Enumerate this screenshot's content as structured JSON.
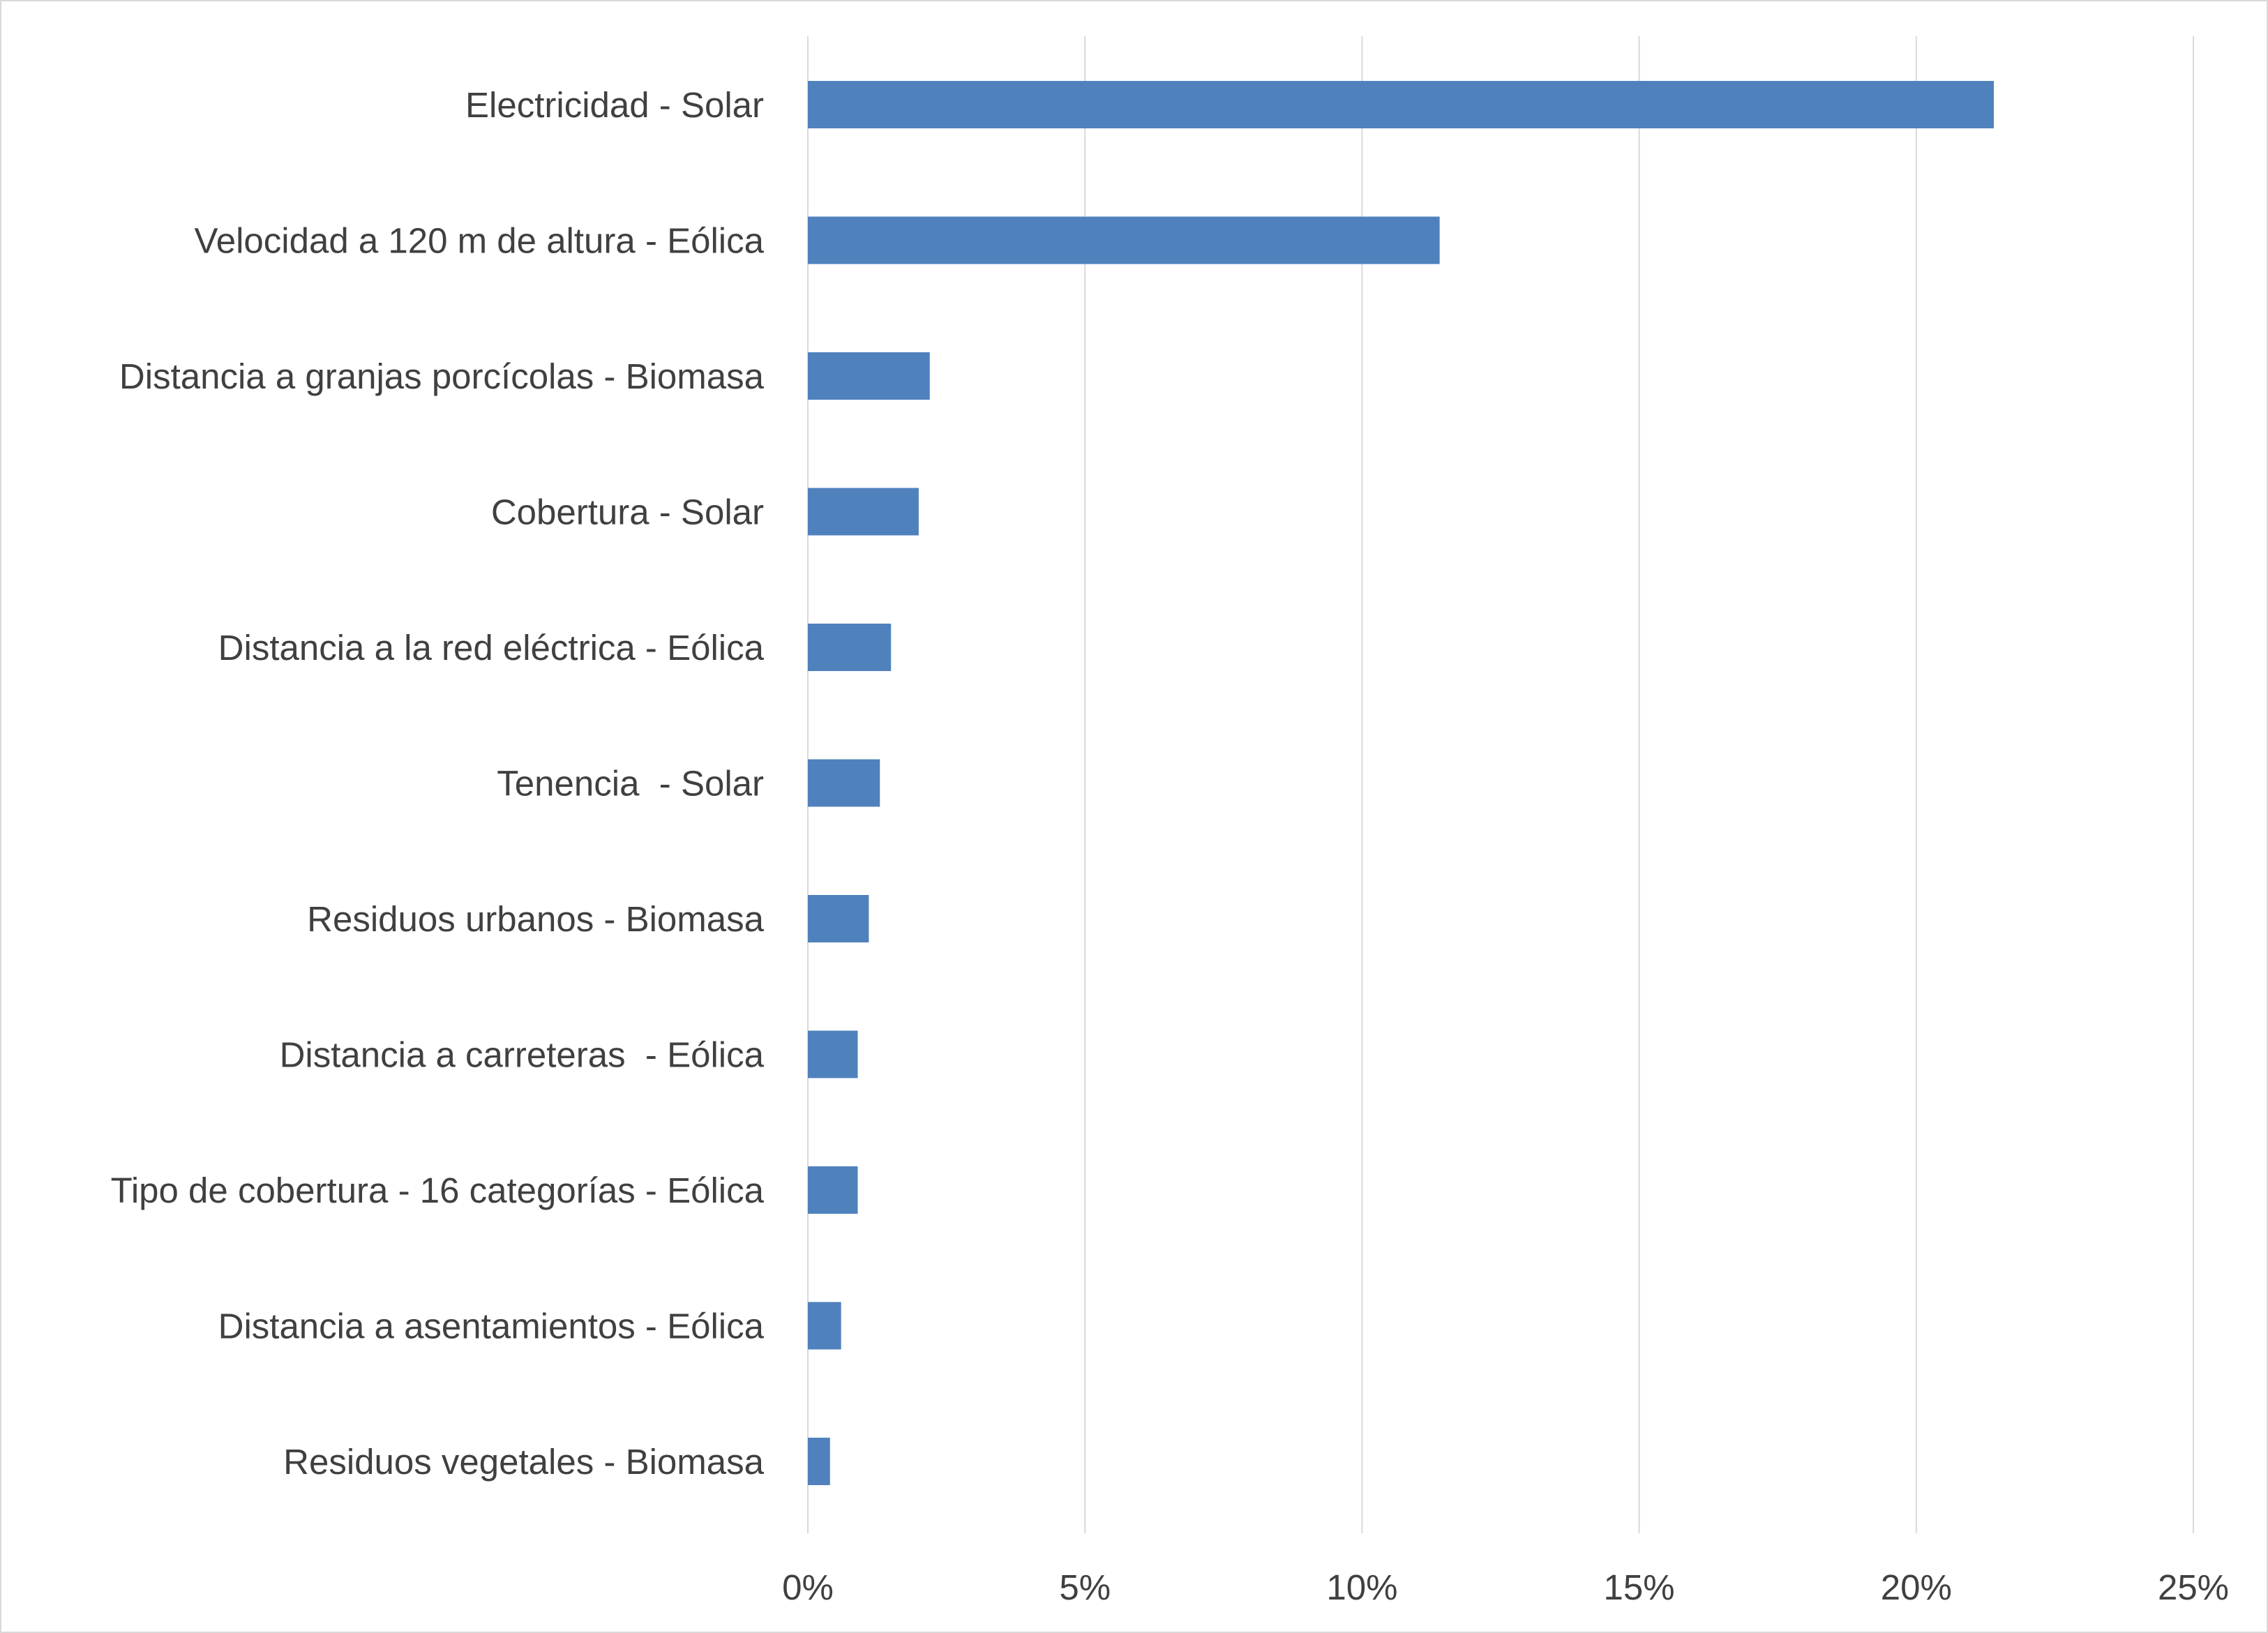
{
  "chart_data": {
    "type": "bar",
    "orientation": "horizontal",
    "title": "",
    "xlabel": "",
    "ylabel": "",
    "categories": [
      "Electricidad - Solar",
      "Velocidad a 120 m de altura - Eólica",
      "Distancia a granjas porcícolas - Biomasa",
      "Cobertura - Solar",
      "Distancia a la red eléctrica - Eólica",
      "Tenencia  - Solar",
      "Residuos urbanos - Biomasa",
      "Distancia a carreteras  - Eólica",
      "Tipo de cobertura - 16 categorías - Eólica",
      "Distancia a asentamientos - Eólica",
      "Residuos vegetales - Biomasa"
    ],
    "values": [
      21.4,
      11.4,
      2.2,
      2.0,
      1.5,
      1.3,
      1.1,
      0.9,
      0.9,
      0.6,
      0.4
    ],
    "xlim": [
      0,
      25
    ],
    "ticks": [
      {
        "value": 0,
        "label": "0%"
      },
      {
        "value": 5,
        "label": "5%"
      },
      {
        "value": 10,
        "label": "10%"
      },
      {
        "value": 15,
        "label": "15%"
      },
      {
        "value": 20,
        "label": "20%"
      },
      {
        "value": 25,
        "label": "25%"
      }
    ],
    "grid": true,
    "bar_color": "#4f81bd",
    "grid_color": "#d9d9d9",
    "legend": "none"
  }
}
